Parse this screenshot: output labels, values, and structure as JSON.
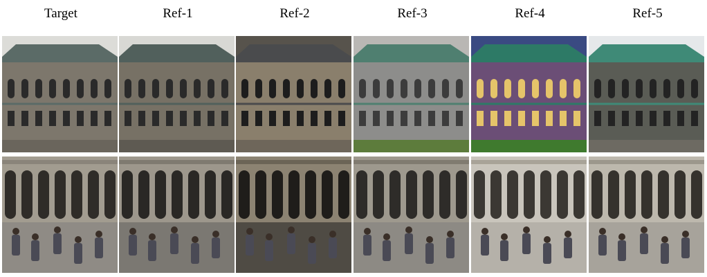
{
  "headers": [
    "Target",
    "Ref-1",
    "Ref-2",
    "Ref-3",
    "Ref-4",
    "Ref-5"
  ],
  "rows": [
    {
      "name": "parliament-building-row",
      "cells": [
        {
          "sky": "#dcdcd8",
          "wall": "#7d776c",
          "roof": "#5b6b67",
          "window": "#2a2a2a",
          "ground": "#6a655c"
        },
        {
          "sky": "#d8d8d4",
          "wall": "#777165",
          "roof": "#51605c",
          "window": "#2a2a2a",
          "ground": "#5e5a52"
        },
        {
          "sky": "#57534c",
          "wall": "#8a7f6c",
          "roof": "#4a4b4d",
          "window": "#1d1d1d",
          "ground": "#6e665a"
        },
        {
          "sky": "#b9b7b4",
          "wall": "#8d8d8b",
          "roof": "#4f7f70",
          "window": "#3c3c3c",
          "ground": "#5d7c3c"
        },
        {
          "sky": "#3a4a82",
          "wall": "#6b4e76",
          "roof": "#2d7a66",
          "window": "#e5c46a",
          "ground": "#3f7a2e"
        },
        {
          "sky": "#e5e8ea",
          "wall": "#5a5c55",
          "roof": "#3f8a77",
          "window": "#232323",
          "ground": "#6d6a62"
        }
      ]
    },
    {
      "name": "arcade-square-row",
      "cells": [
        {
          "sky": "#c9c7c1",
          "wall": "#a29c90",
          "roof": "#8a847a",
          "window": "#2f2c28",
          "ground": "#8f8b85"
        },
        {
          "sky": "#cfcdc8",
          "wall": "#9d978c",
          "roof": "#7f7a70",
          "window": "#2a2825",
          "ground": "#7b7872"
        },
        {
          "sky": "#6d665a",
          "wall": "#8c8372",
          "roof": "#6b6456",
          "window": "#1f1d1a",
          "ground": "#4f4b44"
        },
        {
          "sky": "#b3b0a9",
          "wall": "#9e998e",
          "roof": "#807b70",
          "window": "#2e2c29",
          "ground": "#8d8a84"
        },
        {
          "sky": "#dedbd4",
          "wall": "#c9c5bc",
          "roof": "#a8a398",
          "window": "#3b3833",
          "ground": "#b5b1a9"
        },
        {
          "sky": "#d6d3cc",
          "wall": "#bdb8ad",
          "roof": "#9c978c",
          "window": "#35322d",
          "ground": "#a7a39b"
        }
      ]
    }
  ]
}
